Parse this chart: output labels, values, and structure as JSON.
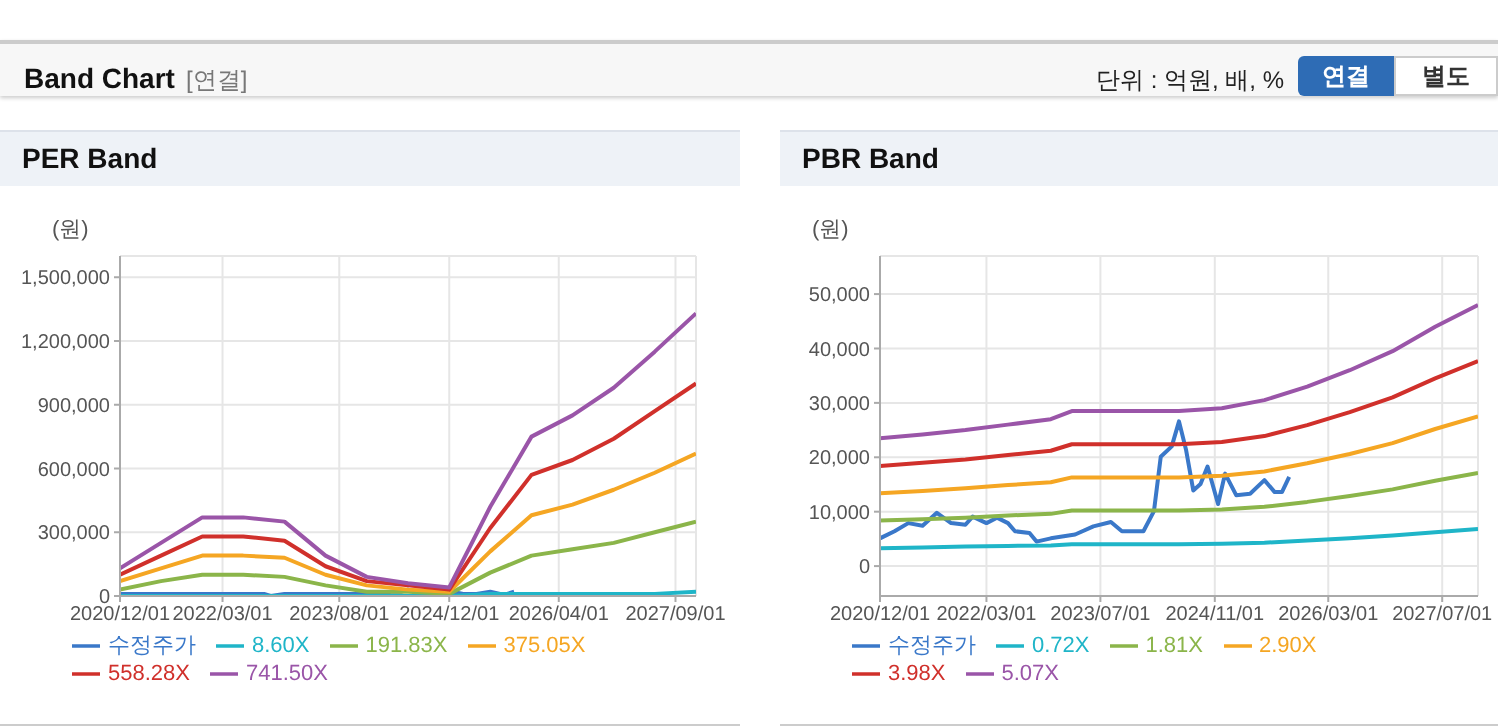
{
  "chart_data": [
    {
      "type": "line",
      "title": "PER Band",
      "ylabel": "(원)",
      "annotations": [
        "Band Chart",
        "[연결]",
        "단위 : 억원, 배, %",
        "연결",
        "별도"
      ],
      "x": [
        "2020-12-01",
        "2021-06-01",
        "2021-12-01",
        "2022-06-01",
        "2022-12-01",
        "2023-06-01",
        "2023-12-01",
        "2024-06-01",
        "2024-12-01",
        "2025-06-01",
        "2025-12-01",
        "2026-06-01",
        "2026-12-01",
        "2027-06-01",
        "2027-12-01"
      ],
      "xlim": [
        "2020-12-01",
        "2027-12-01"
      ],
      "xticks": [
        {
          "value": "2020-12-01",
          "label": "2020/12/01"
        },
        {
          "value": "2022-03-01",
          "label": "2022/03/01"
        },
        {
          "value": "2023-08-01",
          "label": "2023/08/01"
        },
        {
          "value": "2024-12-01",
          "label": "2024/12/01"
        },
        {
          "value": "2026-04-01",
          "label": "2026/04/01"
        },
        {
          "value": "2027-09-01",
          "label": "2027/09/01"
        }
      ],
      "ylim": [
        0,
        1600000
      ],
      "yticks": [
        0,
        {
          "value": 300000,
          "label": "300,000"
        },
        {
          "value": 600000,
          "label": "600,000"
        },
        {
          "value": 900000,
          "label": "900,000"
        },
        {
          "value": 1200000,
          "label": "1,200,000"
        },
        {
          "value": 1500000,
          "label": "1,500,000"
        }
      ],
      "grid": true,
      "legend": "bottom",
      "marker": "none",
      "line_style": "solid",
      "series": [
        {
          "name": "수정주가",
          "color": "#3a78c9",
          "x": [
            "2020-12-01",
            "2021-02-01",
            "2021-04-01",
            "2021-06-01",
            "2021-08-01",
            "2021-10-01",
            "2021-12-01",
            "2022-01-01",
            "2022-03-01",
            "2022-04-15",
            "2022-06-01",
            "2022-07-01",
            "2022-09-01",
            "2022-10-01",
            "2022-12-01",
            "2023-03-15",
            "2023-06-01",
            "2023-08-15",
            "2023-10-01",
            "2024-01-01",
            "2024-02-15",
            "2024-03-15",
            "2024-05-01",
            "2024-06-01",
            "2024-07-01",
            "2024-08-01",
            "2024-09-01",
            "2024-10-01",
            "2024-11-15",
            "2024-12-15",
            "2025-02-01",
            "2025-04-01",
            "2025-06-01",
            "2025-07-15",
            "2025-08-15",
            "2025-09-15"
          ],
          "values": [
            10000,
            10000,
            10000,
            10000,
            10000,
            10000,
            10000,
            10000,
            10000,
            10000,
            10000,
            10000,
            10000,
            0,
            10000,
            10000,
            10000,
            10000,
            10000,
            10000,
            10000,
            20000,
            20000,
            30000,
            20000,
            10000,
            20000,
            20000,
            10000,
            20000,
            10000,
            10000,
            20000,
            10000,
            10000,
            20000
          ]
        },
        {
          "name": "8.60X",
          "color": "#1fb5c8",
          "values": [
            0,
            0,
            0,
            0,
            0,
            0,
            0,
            0,
            0,
            10000,
            10000,
            10000,
            10000,
            10000,
            20000
          ]
        },
        {
          "name": "191.83X",
          "color": "#8bb54a",
          "values": [
            30000,
            70000,
            100000,
            100000,
            90000,
            50000,
            20000,
            20000,
            10000,
            110000,
            190000,
            220000,
            250000,
            300000,
            350000
          ]
        },
        {
          "name": "375.05X",
          "color": "#f5a623",
          "values": [
            70000,
            130000,
            190000,
            190000,
            180000,
            100000,
            50000,
            30000,
            20000,
            210000,
            380000,
            430000,
            500000,
            580000,
            670000
          ]
        },
        {
          "name": "558.28X",
          "color": "#d0302b",
          "values": [
            100000,
            190000,
            280000,
            280000,
            260000,
            140000,
            70000,
            50000,
            30000,
            320000,
            570000,
            640000,
            740000,
            870000,
            1000000
          ]
        },
        {
          "name": "741.50X",
          "color": "#9a55a8",
          "values": [
            130000,
            250000,
            370000,
            370000,
            350000,
            190000,
            90000,
            60000,
            40000,
            420000,
            750000,
            850000,
            980000,
            1150000,
            1330000
          ]
        }
      ]
    },
    {
      "type": "line",
      "title": "PBR Band",
      "ylabel": "(원)",
      "x": [
        "2020-12-01",
        "2021-06-01",
        "2021-12-01",
        "2022-06-01",
        "2022-12-01",
        "2023-03-01",
        "2023-06-01",
        "2023-12-01",
        "2024-06-01",
        "2024-12-01",
        "2025-06-01",
        "2025-12-01",
        "2026-06-01",
        "2026-12-01",
        "2027-06-01",
        "2027-12-01"
      ],
      "xlim": [
        "2020-12-01",
        "2027-12-01"
      ],
      "xticks": [
        {
          "value": "2020-12-01",
          "label": "2020/12/01"
        },
        {
          "value": "2022-03-01",
          "label": "2022/03/01"
        },
        {
          "value": "2023-07-01",
          "label": "2023/07/01"
        },
        {
          "value": "2024-11-01",
          "label": "2024/11/01"
        },
        {
          "value": "2026-03-01",
          "label": "2026/03/01"
        },
        {
          "value": "2027-07-01",
          "label": "2027/07/01"
        }
      ],
      "ylim": [
        -5500,
        57000
      ],
      "yticks": [
        0,
        {
          "value": 10000,
          "label": "10,000"
        },
        {
          "value": 20000,
          "label": "20,000"
        },
        {
          "value": 30000,
          "label": "30,000"
        },
        {
          "value": 40000,
          "label": "40,000"
        },
        {
          "value": 50000,
          "label": "50,000"
        }
      ],
      "grid": true,
      "legend": "bottom",
      "marker": "none",
      "line_style": "solid",
      "series": [
        {
          "name": "수정주가",
          "color": "#3a78c9",
          "x": [
            "2020-12-01",
            "2021-02-01",
            "2021-04-01",
            "2021-06-01",
            "2021-08-01",
            "2021-10-01",
            "2021-12-01",
            "2022-01-01",
            "2022-03-01",
            "2022-04-15",
            "2022-06-01",
            "2022-07-01",
            "2022-09-01",
            "2022-10-01",
            "2022-12-01",
            "2023-03-15",
            "2023-06-01",
            "2023-08-15",
            "2023-10-01",
            "2024-01-01",
            "2024-02-15",
            "2024-03-15",
            "2024-05-01",
            "2024-06-01",
            "2024-07-01",
            "2024-08-01",
            "2024-09-01",
            "2024-10-01",
            "2024-11-15",
            "2024-12-15",
            "2025-02-01",
            "2025-04-01",
            "2025-06-01",
            "2025-07-15",
            "2025-08-15",
            "2025-09-15"
          ],
          "values": [
            5100,
            6400,
            7900,
            7400,
            9800,
            7900,
            7600,
            9100,
            7900,
            8900,
            7900,
            6400,
            6100,
            4500,
            5100,
            5800,
            7300,
            8100,
            6400,
            6400,
            10100,
            20100,
            22000,
            26600,
            21400,
            13900,
            15100,
            18300,
            11400,
            17000,
            13000,
            13300,
            15800,
            13600,
            13600,
            16400
          ]
        },
        {
          "name": "0.72X",
          "color": "#1fb5c8",
          "values": [
            3300,
            3400,
            3600,
            3700,
            3800,
            4000,
            4000,
            4000,
            4000,
            4100,
            4300,
            4700,
            5100,
            5600,
            6200,
            6800
          ]
        },
        {
          "name": "1.81X",
          "color": "#8bb54a",
          "values": [
            8400,
            8600,
            8900,
            9300,
            9600,
            10200,
            10200,
            10200,
            10200,
            10400,
            10900,
            11800,
            12900,
            14100,
            15700,
            17100
          ]
        },
        {
          "name": "2.90X",
          "color": "#f5a623",
          "values": [
            13400,
            13800,
            14300,
            14900,
            15400,
            16300,
            16300,
            16300,
            16300,
            16600,
            17400,
            18900,
            20600,
            22600,
            25200,
            27500
          ]
        },
        {
          "name": "3.98X",
          "color": "#d0302b",
          "values": [
            18400,
            19000,
            19600,
            20400,
            21200,
            22400,
            22400,
            22400,
            22400,
            22800,
            23900,
            25900,
            28300,
            31000,
            34500,
            37700
          ]
        },
        {
          "name": "5.07X",
          "color": "#9a55a8",
          "values": [
            23500,
            24200,
            25000,
            26000,
            27000,
            28500,
            28500,
            28500,
            28500,
            29000,
            30500,
            33000,
            36000,
            39500,
            44000,
            48000
          ]
        }
      ]
    }
  ]
}
